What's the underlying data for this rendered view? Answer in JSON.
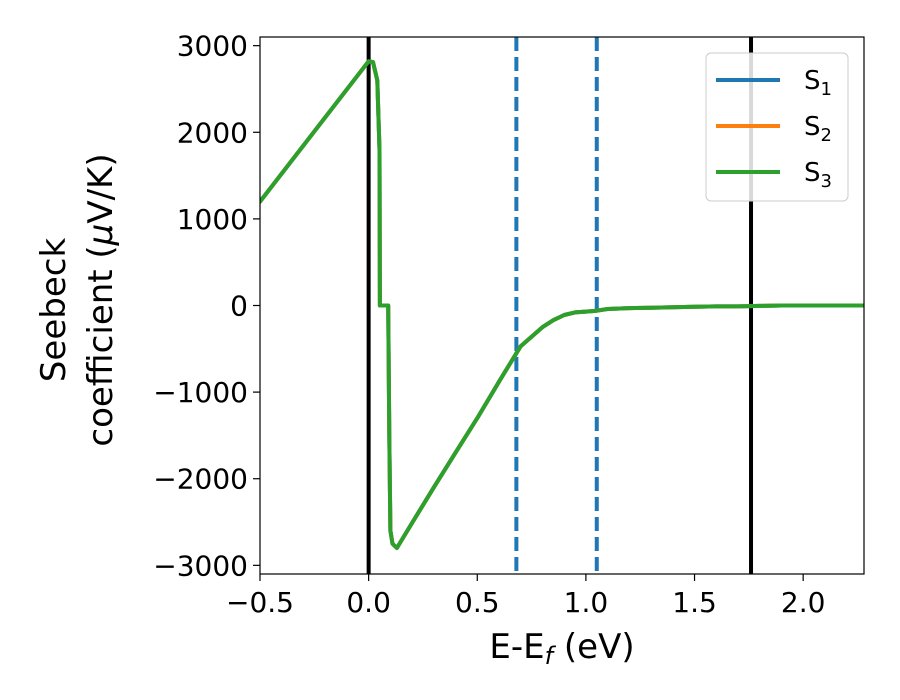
{
  "chart_data": {
    "type": "line",
    "xlabel_main": "E-E",
    "xlabel_sub": "f",
    "xlabel_unit": " (eV)",
    "ylabel_line1": "Seebeck",
    "ylabel_line2_text": "coefficient  (",
    "ylabel_line2_mu": "μ",
    "ylabel_line2_unit": "V/K)",
    "xlim": [
      -0.5,
      2.28
    ],
    "ylim": [
      -3100,
      3100
    ],
    "xticks": [
      -0.5,
      0.0,
      0.5,
      1.0,
      1.5,
      2.0
    ],
    "xtick_labels": [
      "−0.5",
      "0.0",
      "0.5",
      "1.0",
      "1.5",
      "2.0"
    ],
    "yticks": [
      -3000,
      -2000,
      -1000,
      0,
      1000,
      2000,
      3000
    ],
    "ytick_labels": [
      "−3000",
      "−2000",
      "−1000",
      "0",
      "1000",
      "2000",
      "3000"
    ],
    "grid": false,
    "legend_position": "top-right",
    "vlines_solid": [
      0.0,
      1.76
    ],
    "vlines_dashed": [
      0.68,
      1.05
    ],
    "vline_solid_color": "#000000",
    "vline_dashed_color": "#1f77b4",
    "series": [
      {
        "name_main": "S",
        "name_sub": "1",
        "color": "#1f77b4",
        "x": [
          -0.5,
          0.0,
          0.02,
          0.04,
          0.05,
          0.052,
          0.06,
          0.09,
          0.095,
          0.1,
          0.11,
          0.13,
          0.2,
          0.3,
          0.4,
          0.5,
          0.6,
          0.7,
          0.8,
          0.85,
          0.9,
          0.95,
          1.0,
          1.05,
          1.1,
          1.2,
          1.3,
          1.4,
          1.5,
          1.6,
          1.7,
          1.8,
          1.9,
          2.0,
          2.1,
          2.2,
          2.28
        ],
        "y": [
          1200,
          2820,
          2810,
          2600,
          1800,
          0,
          0,
          0,
          -1500,
          -2600,
          -2750,
          -2800,
          -2510,
          -2100,
          -1700,
          -1300,
          -880,
          -470,
          -250,
          -170,
          -110,
          -80,
          -70,
          -60,
          -40,
          -30,
          -25,
          -20,
          -15,
          -10,
          -10,
          -5,
          0,
          0,
          0,
          0,
          0
        ]
      },
      {
        "name_main": "S",
        "name_sub": "2",
        "color": "#ff7f0e",
        "x": [
          -0.5,
          0.0,
          0.02,
          0.04,
          0.05,
          0.052,
          0.06,
          0.09,
          0.095,
          0.1,
          0.11,
          0.13,
          0.2,
          0.3,
          0.4,
          0.5,
          0.6,
          0.7,
          0.8,
          0.85,
          0.9,
          0.95,
          1.0,
          1.05,
          1.1,
          1.2,
          1.3,
          1.4,
          1.5,
          1.6,
          1.7,
          1.8,
          1.9,
          2.0,
          2.1,
          2.2,
          2.28
        ],
        "y": [
          1200,
          2820,
          2810,
          2600,
          1800,
          0,
          0,
          0,
          -1500,
          -2600,
          -2750,
          -2800,
          -2510,
          -2100,
          -1700,
          -1300,
          -880,
          -470,
          -250,
          -170,
          -110,
          -80,
          -70,
          -60,
          -40,
          -30,
          -25,
          -20,
          -15,
          -10,
          -10,
          -5,
          0,
          0,
          0,
          0,
          0
        ]
      },
      {
        "name_main": "S",
        "name_sub": "3",
        "color": "#2ca02c",
        "x": [
          -0.5,
          0.0,
          0.02,
          0.04,
          0.05,
          0.052,
          0.06,
          0.09,
          0.095,
          0.1,
          0.11,
          0.13,
          0.2,
          0.3,
          0.4,
          0.5,
          0.6,
          0.7,
          0.8,
          0.85,
          0.9,
          0.95,
          1.0,
          1.05,
          1.1,
          1.2,
          1.3,
          1.4,
          1.5,
          1.6,
          1.7,
          1.8,
          1.9,
          2.0,
          2.1,
          2.2,
          2.28
        ],
        "y": [
          1200,
          2820,
          2810,
          2600,
          1800,
          0,
          0,
          0,
          -1500,
          -2600,
          -2750,
          -2800,
          -2510,
          -2100,
          -1700,
          -1300,
          -880,
          -470,
          -250,
          -170,
          -110,
          -80,
          -70,
          -60,
          -40,
          -30,
          -25,
          -20,
          -15,
          -10,
          -10,
          -5,
          0,
          0,
          0,
          0,
          0
        ]
      }
    ]
  }
}
